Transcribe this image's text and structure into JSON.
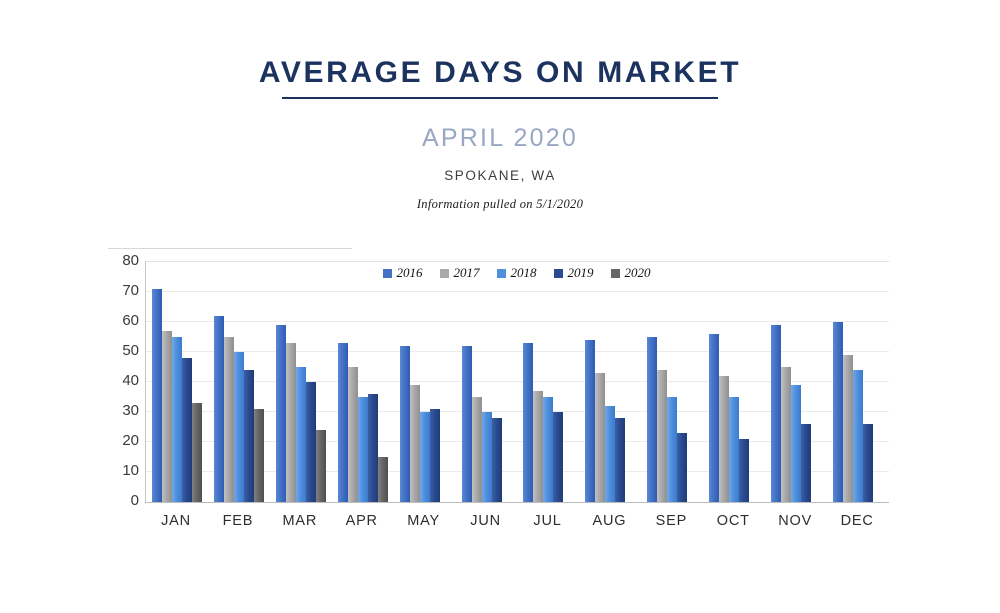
{
  "heading": {
    "title": "AVERAGE DAYS ON MARKET",
    "subtitle": "APRIL 2020",
    "location": "SPOKANE, WA",
    "note": "Information pulled on 5/1/2020"
  },
  "colors": {
    "title_navy": "#1c335f",
    "subtitle_blue_gray": "#99a7c3",
    "gridline": "#ebebeb",
    "axis_line": "#bcbcbc"
  },
  "chart_data": {
    "type": "bar",
    "title": "AVERAGE DAYS ON MARKET",
    "subtitle": "APRIL 2020",
    "location": "SPOKANE, WA",
    "note": "Information pulled on 5/1/2020",
    "xlabel": "",
    "ylabel": "",
    "ylim": [
      0,
      80
    ],
    "ytick_step": 10,
    "yticks": [
      0,
      10,
      20,
      30,
      40,
      50,
      60,
      70,
      80
    ],
    "grid": true,
    "legend_position": "top-center",
    "categories": [
      "JAN",
      "FEB",
      "MAR",
      "APR",
      "MAY",
      "JUN",
      "JUL",
      "AUG",
      "SEP",
      "OCT",
      "NOV",
      "DEC"
    ],
    "series": [
      {
        "name": "2016",
        "color": "#4472c4",
        "color_light": "#5b87d7",
        "color_dark": "#2e5cb4",
        "values": [
          71,
          62,
          59,
          53,
          52,
          52,
          53,
          54,
          55,
          56,
          59,
          60
        ]
      },
      {
        "name": "2017",
        "color": "#a9a9a9",
        "color_light": "#c1c1c1",
        "color_dark": "#8f8f8f",
        "values": [
          57,
          55,
          53,
          45,
          39,
          35,
          37,
          43,
          44,
          42,
          45,
          49
        ]
      },
      {
        "name": "2018",
        "color": "#4f90dc",
        "color_light": "#72a8e9",
        "color_dark": "#3b7bce",
        "values": [
          55,
          50,
          45,
          35,
          30,
          30,
          35,
          32,
          35,
          35,
          39,
          44
        ]
      },
      {
        "name": "2019",
        "color": "#2a4b8f",
        "color_light": "#3c5fa6",
        "color_dark": "#1e3c78",
        "values": [
          48,
          44,
          40,
          36,
          31,
          28,
          30,
          28,
          23,
          21,
          26,
          26
        ]
      },
      {
        "name": "2020",
        "color": "#666666",
        "color_light": "#818181",
        "color_dark": "#4f4f4f",
        "values": [
          33,
          31,
          24,
          15,
          null,
          null,
          null,
          null,
          null,
          null,
          null,
          null
        ]
      }
    ]
  }
}
